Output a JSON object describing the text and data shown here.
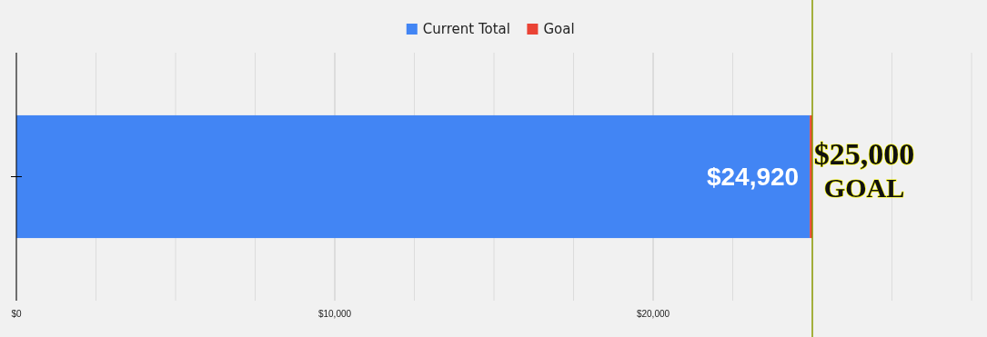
{
  "chart_data": {
    "type": "bar",
    "orientation": "horizontal",
    "stacked": true,
    "categories": [
      null
    ],
    "series": [
      {
        "name": "Current Total",
        "color": "#4285f4",
        "values": [
          24920
        ],
        "value_labels": [
          "$24,920"
        ]
      },
      {
        "name": "Goal",
        "color": "#ea4335",
        "values": [
          80
        ]
      }
    ],
    "xlim": [
      0,
      30000
    ],
    "xticks": [
      {
        "value": 0,
        "label": "$0"
      },
      {
        "value": 2500,
        "label": null
      },
      {
        "value": 5000,
        "label": null
      },
      {
        "value": 7500,
        "label": null
      },
      {
        "value": 10000,
        "label": "$10,000"
      },
      {
        "value": 12500,
        "label": null
      },
      {
        "value": 15000,
        "label": null
      },
      {
        "value": 17500,
        "label": null
      },
      {
        "value": 20000,
        "label": "$20,000"
      },
      {
        "value": 22500,
        "label": null
      },
      {
        "value": 25000,
        "label": null
      },
      {
        "value": 27500,
        "label": null
      },
      {
        "value": 30000,
        "label": null
      }
    ],
    "grid": "x",
    "legend": "top",
    "ref_lines": [
      {
        "axis": "x",
        "value": 25000,
        "label": "$25,000 GOAL",
        "color": "#8a9a00"
      }
    ]
  }
}
